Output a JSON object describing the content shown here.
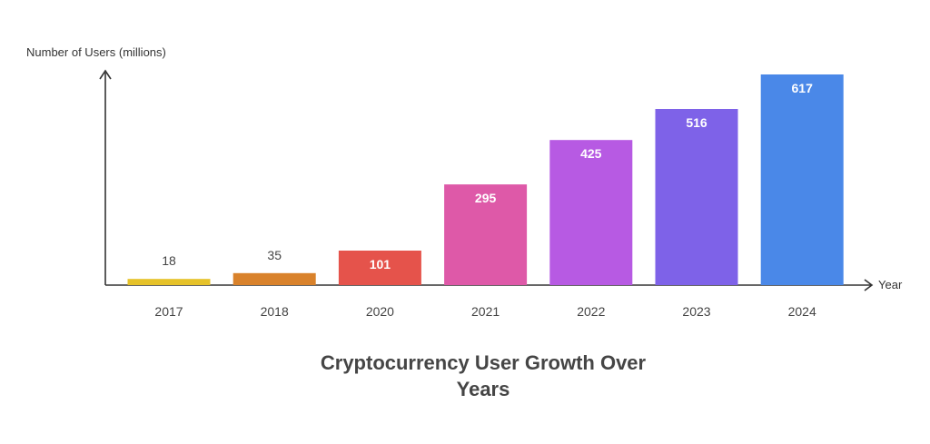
{
  "chart_data": {
    "type": "bar",
    "title_lines": [
      "Cryptocurrency User Growth Over",
      "Years"
    ],
    "xlabel": "Year",
    "ylabel": "Number of Users (millions)",
    "categories": [
      "2017",
      "2018",
      "2020",
      "2021",
      "2022",
      "2023",
      "2024"
    ],
    "values": [
      18,
      35,
      101,
      295,
      425,
      516,
      617
    ],
    "value_labels": [
      "18",
      "35",
      "101",
      "295",
      "425",
      "516",
      "617"
    ],
    "colors": [
      "#E6C229",
      "#D9822B",
      "#E5534B",
      "#DE59A8",
      "#B75AE3",
      "#7E62E8",
      "#4A88E8"
    ],
    "ylim": [
      0,
      617
    ],
    "grid": false,
    "legend": "none"
  }
}
